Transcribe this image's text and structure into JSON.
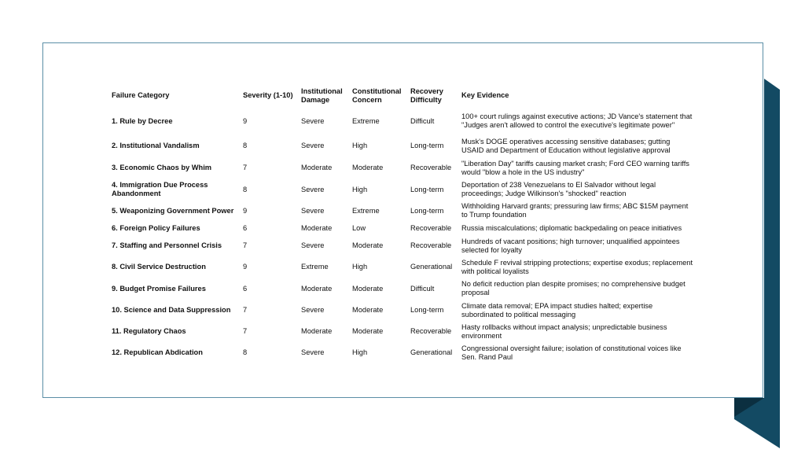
{
  "colors": {
    "ribbon": "#134a63",
    "ribbon_shadow": "#0b2f40",
    "card_border": "#5b8ea6"
  },
  "table": {
    "headers": [
      "Failure Category",
      "Severity (1-10)",
      "Institutional Damage",
      "Constitutional Concern",
      "Recovery Difficulty",
      "Key Evidence"
    ],
    "rows": [
      [
        "1. Rule by Decree",
        "9",
        "Severe",
        "Extreme",
        "Difficult",
        "100+ court rulings against executive actions; JD Vance's statement that \"Judges aren't allowed to control the executive's legitimate power\""
      ],
      [
        "2. Institutional Vandalism",
        "8",
        "Severe",
        "High",
        "Long-term",
        "Musk's DOGE operatives accessing sensitive databases; gutting USAID and Department of Education without legislative approval"
      ],
      [
        "3. Economic Chaos by Whim",
        "7",
        "Moderate",
        "Moderate",
        "Recoverable",
        "\"Liberation Day\" tariffs causing market crash; Ford CEO warning tariffs would \"blow a hole in the US industry\""
      ],
      [
        "4. Immigration Due Process Abandonment",
        "8",
        "Severe",
        "High",
        "Long-term",
        "Deportation of 238 Venezuelans to El Salvador without legal proceedings; Judge Wilkinson's \"shocked\" reaction"
      ],
      [
        "5. Weaponizing Government Power",
        "9",
        "Severe",
        "Extreme",
        "Long-term",
        "Withholding Harvard grants; pressuring law firms; ABC $15M payment to Trump foundation"
      ],
      [
        "6. Foreign Policy Failures",
        "6",
        "Moderate",
        "Low",
        "Recoverable",
        "Russia miscalculations; diplomatic backpedaling on peace initiatives"
      ],
      [
        "7. Staffing and Personnel Crisis",
        "7",
        "Severe",
        "Moderate",
        "Recoverable",
        "Hundreds of vacant positions; high turnover; unqualified appointees selected for loyalty"
      ],
      [
        "8. Civil Service Destruction",
        "9",
        "Extreme",
        "High",
        "Generational",
        "Schedule F revival stripping protections; expertise exodus; replacement with political loyalists"
      ],
      [
        "9. Budget Promise Failures",
        "6",
        "Moderate",
        "Moderate",
        "Difficult",
        "No deficit reduction plan despite promises; no comprehensive budget proposal"
      ],
      [
        "10. Science and Data Suppression",
        "7",
        "Severe",
        "Moderate",
        "Long-term",
        "Climate data removal; EPA impact studies halted; expertise subordinated to political messaging"
      ],
      [
        "11. Regulatory Chaos",
        "7",
        "Moderate",
        "Moderate",
        "Recoverable",
        "Hasty rollbacks without impact analysis; unpredictable business environment"
      ],
      [
        "12. Republican Abdication",
        "8",
        "Severe",
        "High",
        "Generational",
        "Congressional oversight failure; isolation of constitutional voices like Sen. Rand Paul"
      ]
    ]
  }
}
